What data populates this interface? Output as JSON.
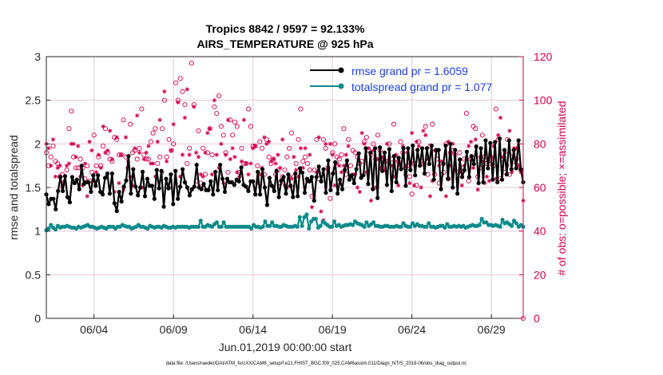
{
  "chart_data": {
    "type": "line",
    "title": "Tropics 8842 / 9597 = 92.133%",
    "subtitle": "AIRS_TEMPERATURE @ 925 hPa",
    "xlabel": "Jun.01,2019 00:00:00 start",
    "ylabel": "rmse and totalspread",
    "ylabel_right": "# of obs: o=possible; ×=assimilated",
    "footnote": "data file: /Users/raeder/DAI/ATM_forcXX/CAM6_setup/f.e21.FHIST_BGC.f09_025.CAM6assim.011/Diags_NTrS_2019-06/obs_diag_output.nc",
    "xlim": [
      1,
      31
    ],
    "ylim": [
      0,
      3
    ],
    "ylim_right": [
      0,
      120
    ],
    "xticks": [
      {
        "x": 4,
        "label": "06/04"
      },
      {
        "x": 9,
        "label": "06/09"
      },
      {
        "x": 14,
        "label": "06/14"
      },
      {
        "x": 19,
        "label": "06/19"
      },
      {
        "x": 24,
        "label": "06/24"
      },
      {
        "x": 29,
        "label": "06/29"
      }
    ],
    "yticks": [
      "0",
      "0.5",
      "1",
      "1.5",
      "2",
      "2.5",
      "3"
    ],
    "yticks_right": [
      "0",
      "20",
      "40",
      "60",
      "80",
      "100",
      "120"
    ],
    "grid": true,
    "legend_position": "top-right",
    "colors": {
      "rmse": "#000000",
      "spread": "#0e8a8a",
      "obs": "#d2004f",
      "grid": "#e2c8d4"
    },
    "series": [
      {
        "name": "rmse grand pr = 1.6059",
        "values": [
          1.42,
          1.31,
          1.37,
          1.37,
          1.25,
          1.46,
          1.62,
          1.46,
          1.63,
          1.39,
          1.33,
          1.62,
          1.55,
          1.59,
          1.48,
          1.75,
          1.54,
          1.56,
          1.56,
          1.45,
          1.64,
          1.52,
          1.64,
          1.45,
          1.42,
          1.61,
          1.66,
          1.43,
          1.66,
          1.32,
          1.23,
          1.45,
          1.34,
          1.51,
          1.58,
          1.86,
          1.43,
          1.71,
          1.51,
          1.41,
          1.5,
          1.68,
          1.4,
          1.6,
          1.52,
          1.52,
          1.37,
          1.7,
          1.49,
          1.69,
          1.28,
          1.6,
          1.49,
          1.65,
          1.31,
          1.69,
          1.37,
          1.51,
          1.71,
          1.56,
          1.5,
          1.41,
          1.48,
          1.51,
          1.76,
          1.5,
          1.48,
          1.54,
          1.47,
          1.47,
          1.57,
          1.42,
          1.68,
          1.47,
          1.76,
          1.6,
          1.45,
          1.6,
          1.56,
          1.56,
          1.53,
          1.59,
          1.57,
          1.73,
          1.53,
          1.51,
          1.46,
          1.57,
          1.57,
          1.42,
          1.68,
          1.42,
          1.71,
          1.5,
          1.3,
          1.61,
          1.52,
          1.46,
          1.69,
          1.39,
          1.58,
          1.62,
          1.43,
          1.65,
          1.52,
          1.39,
          1.66,
          1.4,
          1.72,
          1.67,
          1.44,
          1.6,
          1.57,
          1.62,
          1.35,
          1.62,
          1.74,
          1.57,
          1.71,
          1.44,
          1.81,
          1.47,
          1.66,
          1.79,
          1.43,
          1.59,
          1.48,
          1.7,
          1.81,
          1.59,
          1.64,
          1.55,
          1.71,
          1.89,
          1.61,
          1.64,
          1.95,
          1.54,
          1.9,
          1.48,
          1.95,
          1.38,
          1.96,
          1.69,
          1.9,
          1.53,
          1.94,
          1.46,
          1.86,
          1.56,
          1.84,
          1.71,
          1.95,
          1.52,
          1.95,
          1.7,
          1.98,
          1.64,
          1.93,
          1.75,
          1.95,
          1.66,
          1.95,
          1.77,
          1.98,
          1.59,
          1.93,
          1.93,
          1.48,
          1.77,
          1.98,
          1.6,
          2.0,
          1.5,
          1.93,
          1.43,
          1.82,
          1.62,
          1.7,
          1.91,
          1.62,
          1.86,
          1.77,
          1.97,
          1.55,
          1.95,
          1.56,
          2.04,
          1.72,
          2.01,
          1.59,
          2.02,
          1.56,
          2.06,
          1.59,
          1.93,
          1.65,
          2.04,
          1.71,
          1.93,
          1.72,
          2.04,
          1.71,
          1.56
        ],
        "color": "#000000"
      },
      {
        "name": "totalspread grand pr = 1.077",
        "values": [
          1.01,
          1.03,
          1.07,
          1.04,
          1.02,
          1.06,
          1.04,
          1.05,
          1.05,
          1.06,
          1.05,
          1.04,
          1.04,
          1.03,
          1.05,
          1.04,
          1.05,
          1.06,
          1.07,
          1.05,
          1.05,
          1.04,
          1.03,
          1.04,
          1.05,
          1.04,
          1.03,
          1.05,
          1.05,
          1.05,
          1.03,
          1.05,
          1.05,
          1.07,
          1.06,
          1.05,
          1.05,
          1.03,
          1.04,
          1.05,
          1.07,
          1.05,
          1.05,
          1.04,
          1.03,
          1.06,
          1.05,
          1.04,
          1.05,
          1.05,
          1.04,
          1.06,
          1.05,
          1.04,
          1.04,
          1.05,
          1.04,
          1.05,
          1.05,
          1.05,
          1.05,
          1.05,
          1.04,
          1.05,
          1.05,
          1.05,
          1.05,
          1.12,
          1.05,
          1.05,
          1.07,
          1.06,
          1.05,
          1.08,
          1.1,
          1.05,
          1.05,
          1.1,
          1.05,
          1.05,
          1.05,
          1.05,
          1.05,
          1.05,
          1.05,
          1.05,
          1.05,
          1.05,
          1.05,
          1.03,
          1.07,
          1.05,
          1.05,
          1.04,
          1.05,
          1.11,
          1.06,
          1.06,
          1.1,
          1.06,
          1.06,
          1.05,
          1.05,
          1.07,
          1.06,
          1.05,
          1.05,
          1.05,
          1.06,
          1.05,
          1.16,
          1.06,
          1.16,
          1.19,
          1.03,
          1.11,
          1.14,
          1.14,
          1.04,
          1.06,
          1.11,
          1.09,
          1.07,
          1.05,
          1.05,
          1.11,
          1.06,
          1.07,
          1.05,
          1.06,
          1.07,
          1.07,
          1.08,
          1.07,
          1.11,
          1.09,
          1.08,
          1.07,
          1.05,
          1.1,
          1.06,
          1.08,
          1.1,
          1.06,
          1.06,
          1.05,
          1.05,
          1.06,
          1.06,
          1.05,
          1.05,
          1.05,
          1.06,
          1.05,
          1.05,
          1.09,
          1.06,
          1.05,
          1.05,
          1.09,
          1.06,
          1.08,
          1.06,
          1.06,
          1.05,
          1.05,
          1.09,
          1.05,
          1.05,
          1.04,
          1.05,
          1.06,
          1.06,
          1.04,
          1.08,
          1.05,
          1.05,
          1.06,
          1.05,
          1.06,
          1.05,
          1.06,
          1.04,
          1.05,
          1.06,
          1.07,
          1.06,
          1.06,
          1.07,
          1.14,
          1.1,
          1.1,
          1.07,
          1.07,
          1.06,
          1.07,
          1.06,
          1.05,
          1.13,
          1.09,
          1.1,
          1.08,
          1.06,
          1.12,
          1.09,
          1.05,
          1.07,
          1.05
        ],
        "color": "#0e8a8a"
      },
      {
        "name": "obs possible",
        "values": [
          76,
          70,
          74,
          79,
          72,
          71,
          65,
          66,
          62,
          68,
          87,
          95,
          74,
          69,
          69,
          73,
          69,
          64,
          70,
          63,
          67,
          84,
          70,
          74,
          70,
          79,
          87,
          76,
          73,
          72,
          83,
          82,
          75,
          75,
          91,
          74,
          69,
          89,
          76,
          77,
          73,
          78,
          96,
          75,
          73,
          73,
          81,
          85,
          87,
          71,
          74,
          87,
          100,
          74,
          82,
          77,
          80,
          108,
          100,
          110,
          104,
          98,
          71,
          78,
          117,
          98,
          63,
          86,
          62,
          78,
          66,
          76,
          87,
          75,
          97,
          94,
          102,
          88,
          84,
          76,
          67,
          91,
          84,
          90,
          88,
          67,
          78,
          71,
          71,
          96,
          88,
          79,
          79,
          70,
          81,
          78,
          66,
          82,
          74,
          71,
          73,
          66,
          68,
          62,
          65,
          68,
          74,
          78,
          85,
          65,
          71,
          82,
          96,
          72,
          74,
          71,
          68,
          56,
          68,
          82,
          64,
          66,
          82,
          78,
          69,
          55,
          76,
          80,
          74,
          73,
          75,
          87,
          66,
          82,
          70,
          77,
          76,
          74,
          71,
          72,
          81,
          83,
          77,
          75,
          80,
          73,
          84,
          77,
          69,
          72,
          72,
          80,
          73,
          89,
          73,
          72,
          81,
          76,
          69,
          70,
          65,
          57,
          71,
          61,
          81,
          72,
          71,
          88,
          66,
          79,
          89,
          66,
          73,
          62,
          66,
          67,
          80,
          64,
          76,
          77,
          75,
          67,
          76,
          69,
          73,
          94,
          63,
          73,
          88,
          87,
          65,
          69,
          84,
          74,
          71,
          71,
          72,
          70,
          96,
          82,
          64,
          73,
          67,
          82,
          66,
          74,
          72,
          73,
          70,
          68,
          0
        ],
        "color": "#d2004f"
      },
      {
        "name": "obs assimilated",
        "values": [
          80,
          78,
          70,
          82,
          65,
          69,
          70,
          60,
          63,
          70,
          71,
          80,
          80,
          74,
          79,
          65,
          61,
          71,
          56,
          81,
          77,
          63,
          67,
          75,
          69,
          88,
          76,
          77,
          86,
          73,
          58,
          83,
          62,
          75,
          59,
          83,
          72,
          65,
          61,
          78,
          93,
          76,
          60,
          73,
          76,
          79,
          71,
          71,
          65,
          81,
          91,
          67,
          104,
          72,
          60,
          77,
          89,
          62,
          99,
          65,
          75,
          92,
          105,
          75,
          59,
          97,
          76,
          74,
          66,
          65,
          76,
          85,
          87,
          66,
          100,
          75,
          69,
          80,
          62,
          75,
          91,
          73,
          78,
          74,
          67,
          65,
          72,
          91,
          71,
          66,
          71,
          78,
          79,
          62,
          66,
          69,
          83,
          80,
          81,
          72,
          73,
          71,
          75,
          69,
          82,
          61,
          60,
          65,
          64,
          74,
          68,
          65,
          78,
          69,
          78,
          63,
          75,
          51,
          56,
          67,
          83,
          49,
          45,
          80,
          68,
          80,
          75,
          61,
          71,
          70,
          67,
          70,
          75,
          79,
          65,
          66,
          66,
          60,
          58,
          85,
          80,
          67,
          78,
          54,
          77,
          60,
          73,
          69,
          74,
          68,
          80,
          72,
          70,
          65,
          75,
          61,
          70,
          79,
          66,
          76,
          62,
          85,
          61,
          81,
          79,
          60,
          86,
          84,
          73,
          56,
          63,
          77,
          77,
          70,
          72,
          71,
          56,
          81,
          70,
          80,
          68,
          64,
          67,
          61,
          70,
          73,
          79,
          81,
          69,
          82,
          59,
          74,
          72,
          62,
          65,
          63,
          74,
          79,
          64,
          84,
          92,
          74,
          76,
          70,
          86,
          67,
          78,
          78,
          70,
          67,
          54
        ],
        "color": "#d2004f"
      }
    ]
  }
}
